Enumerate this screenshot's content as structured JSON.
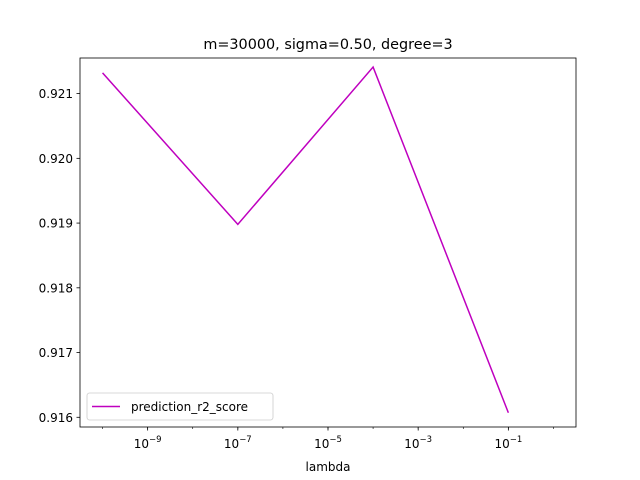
{
  "chart_data": {
    "type": "line",
    "title": "m=30000, sigma=0.50, degree=3",
    "xlabel": "lambda",
    "ylabel": "",
    "x_scale": "log",
    "xlim_exponents": [
      -10.5,
      0.5
    ],
    "ylim": [
      0.91585,
      0.92155
    ],
    "x_ticks": [
      {
        "base": "10",
        "exp": "−9",
        "value": 1e-09
      },
      {
        "base": "10",
        "exp": "−7",
        "value": 1e-07
      },
      {
        "base": "10",
        "exp": "−5",
        "value": 1e-05
      },
      {
        "base": "10",
        "exp": "−3",
        "value": 0.001
      },
      {
        "base": "10",
        "exp": "−1",
        "value": 0.1
      }
    ],
    "y_ticks": [
      "0.916",
      "0.917",
      "0.918",
      "0.919",
      "0.920",
      "0.921"
    ],
    "series": [
      {
        "name": "prediction_r2_score",
        "color": "#bf00bf",
        "x": [
          1e-10,
          1e-07,
          0.0001,
          0.1
        ],
        "y": [
          0.92132,
          0.91898,
          0.92141,
          0.91607
        ]
      }
    ],
    "grid": false,
    "legend_position": "lower-left"
  }
}
